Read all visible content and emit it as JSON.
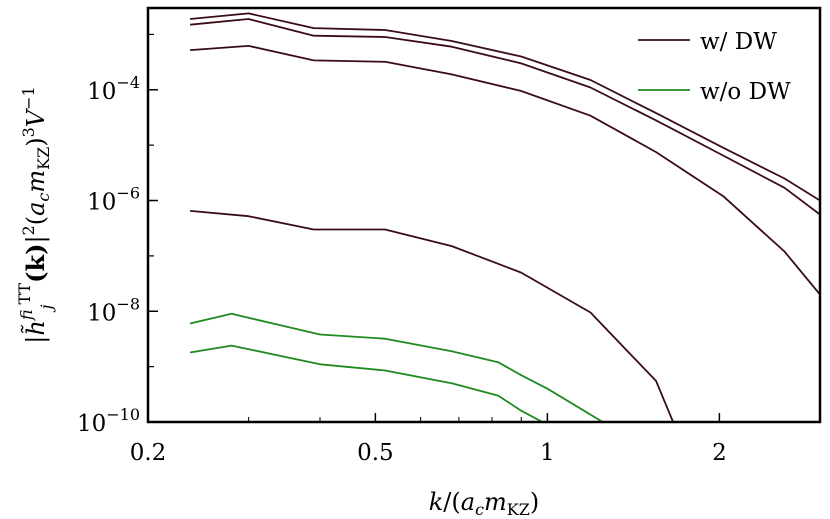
{
  "chart_data": {
    "type": "line",
    "xlabel": "k/(a_c m_KZ)",
    "ylabel": "|h̃^f_ij^TT(k)|^2 (a_c m_KZ)^3 V^-1",
    "x_scale": "log",
    "y_scale": "log",
    "xlim": [
      0.2,
      3.0
    ],
    "ylim": [
      1e-10,
      0.003
    ],
    "x_ticks": [
      {
        "value": 0.2,
        "label": "0.2"
      },
      {
        "value": 0.5,
        "label": "0.5"
      },
      {
        "value": 1,
        "label": "1"
      },
      {
        "value": 2,
        "label": "2"
      }
    ],
    "y_ticks": [
      {
        "value": 1e-10,
        "mantissa": "10",
        "exponent": "−10"
      },
      {
        "value": 1e-08,
        "mantissa": "10",
        "exponent": "−8"
      },
      {
        "value": 1e-06,
        "mantissa": "10",
        "exponent": "−6"
      },
      {
        "value": 0.0001,
        "mantissa": "10",
        "exponent": "−4"
      }
    ],
    "legend": {
      "position": "top-right",
      "entries": [
        {
          "label": "w/ DW",
          "color": "#3a0d16"
        },
        {
          "label": "w/o DW",
          "color": "#1f8a1f"
        }
      ]
    },
    "series": [
      {
        "group": "w/ DW",
        "color": "#3a0d16",
        "x": [
          0.237,
          0.3,
          0.39,
          0.52,
          0.68,
          0.9,
          1.19,
          1.55,
          2.03,
          2.6,
          3.0
        ],
        "y": [
          0.0019,
          0.0024,
          0.0013,
          0.0012,
          0.00076,
          0.0004,
          0.00015,
          3.8e-05,
          9e-06,
          2.5e-06,
          1e-06
        ]
      },
      {
        "group": "w/ DW",
        "color": "#3a0d16",
        "x": [
          0.237,
          0.3,
          0.39,
          0.52,
          0.68,
          0.9,
          1.19,
          1.55,
          2.03,
          2.6,
          3.0
        ],
        "y": [
          0.0015,
          0.0019,
          0.00095,
          0.0009,
          0.0006,
          0.0003,
          0.00011,
          2.8e-05,
          6.5e-06,
          1.7e-06,
          5.6e-07
        ]
      },
      {
        "group": "w/ DW",
        "color": "#3a0d16",
        "x": [
          0.237,
          0.3,
          0.39,
          0.52,
          0.68,
          0.9,
          1.19,
          1.55,
          2.03,
          2.6,
          3.0
        ],
        "y": [
          0.00052,
          0.00062,
          0.00034,
          0.00032,
          0.00019,
          9.5e-05,
          3.4e-05,
          7.5e-06,
          1.2e-06,
          1.2e-07,
          2e-08
        ]
      },
      {
        "group": "w/ DW",
        "color": "#3a0d16",
        "x": [
          0.237,
          0.3,
          0.39,
          0.52,
          0.68,
          0.9,
          1.19,
          1.55,
          1.66
        ],
        "y": [
          6.5e-07,
          5.2e-07,
          3e-07,
          3e-07,
          1.5e-07,
          5e-08,
          9.5e-09,
          5.5e-10,
          1e-10
        ]
      },
      {
        "group": "w/o DW",
        "color": "#1f8a1f",
        "x": [
          0.237,
          0.28,
          0.4,
          0.52,
          0.68,
          0.82,
          0.9,
          1.0,
          1.25
        ],
        "y": [
          6e-09,
          9e-09,
          3.8e-09,
          3.2e-09,
          1.9e-09,
          1.2e-09,
          7e-10,
          4e-10,
          1e-10
        ]
      },
      {
        "group": "w/o DW",
        "color": "#1f8a1f",
        "x": [
          0.237,
          0.28,
          0.4,
          0.52,
          0.68,
          0.82,
          0.9,
          0.98
        ],
        "y": [
          1.8e-09,
          2.4e-09,
          1.1e-09,
          8.5e-10,
          5e-10,
          3e-10,
          1.6e-10,
          1e-10
        ]
      }
    ]
  }
}
